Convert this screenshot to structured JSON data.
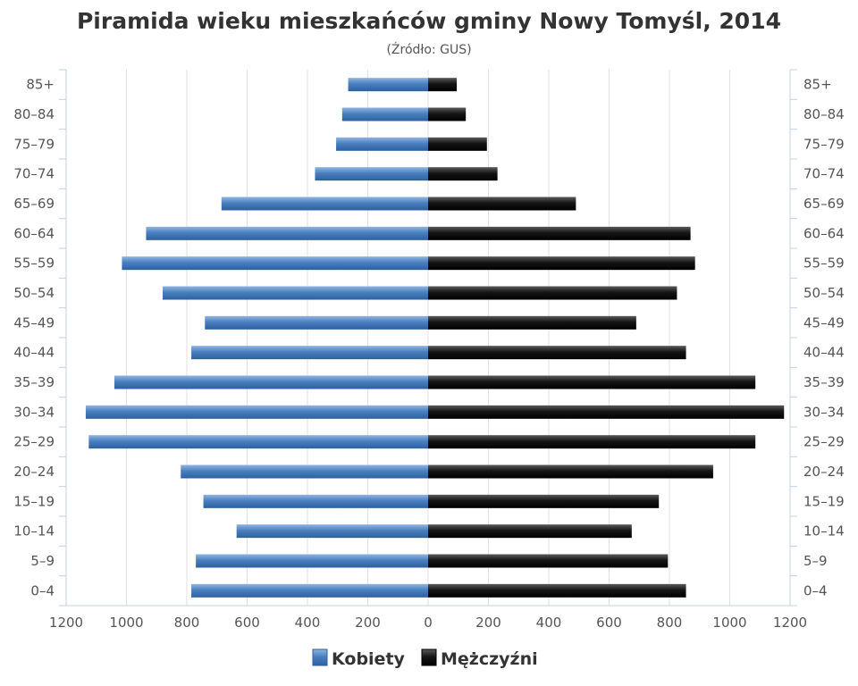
{
  "chart_data": {
    "type": "bar",
    "orientation": "horizontal",
    "title": "Piramida wieku mieszkańców gminy Nowy Tomyśl, 2014",
    "subtitle": "(Źródło: GUS)",
    "categories": [
      "0–4",
      "5–9",
      "10–14",
      "15–19",
      "20–24",
      "25–29",
      "30–34",
      "35–39",
      "40–44",
      "45–49",
      "50–54",
      "55–59",
      "60–64",
      "65–69",
      "70–74",
      "75–79",
      "80–84",
      "85+"
    ],
    "series": [
      {
        "name": "Kobiety",
        "color": "#4a80c0",
        "values": [
          785,
          770,
          635,
          745,
          820,
          1125,
          1135,
          1040,
          785,
          740,
          880,
          1015,
          935,
          685,
          375,
          305,
          285,
          265
        ]
      },
      {
        "name": "Mężczyźni",
        "color": "#111111",
        "values": [
          855,
          795,
          675,
          765,
          945,
          1085,
          1180,
          1085,
          855,
          690,
          825,
          885,
          870,
          490,
          230,
          195,
          125,
          95
        ]
      }
    ],
    "xlim": [
      -1200,
      1200
    ],
    "x_ticks": [
      "1200",
      "1000",
      "800",
      "600",
      "400",
      "200",
      "0",
      "200",
      "400",
      "600",
      "800",
      "1000",
      "1200"
    ],
    "grid": true,
    "legend_position": "bottom"
  }
}
